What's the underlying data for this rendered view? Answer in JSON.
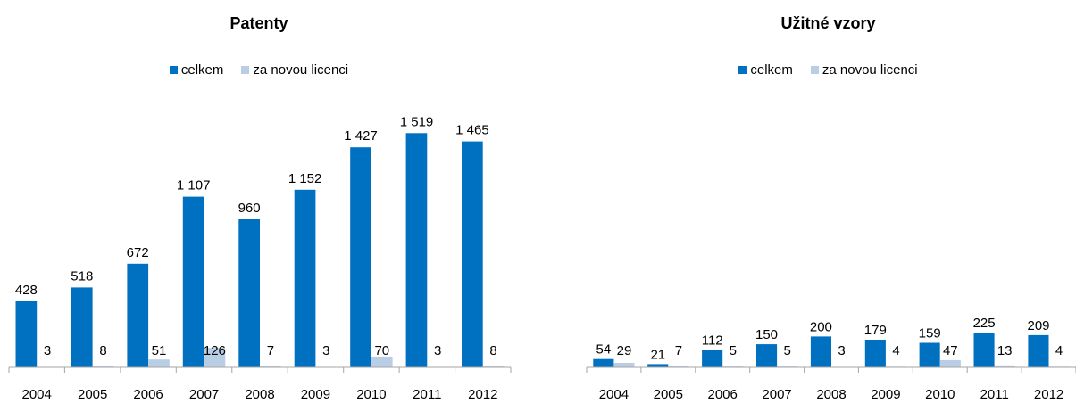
{
  "colors": {
    "total": "#0070C0",
    "new_license": "#B9CDE5",
    "axis": "#A6A6A6"
  },
  "chart_data": [
    {
      "type": "bar",
      "title": "Patenty",
      "categories": [
        "2004",
        "2005",
        "2006",
        "2007",
        "2008",
        "2009",
        "2010",
        "2011",
        "2012"
      ],
      "series": [
        {
          "name": "celkem",
          "values": [
            428,
            518,
            672,
            1107,
            960,
            1152,
            1427,
            1519,
            1465
          ],
          "labels": [
            "428",
            "518",
            "672",
            "1 107",
            "960",
            "1 152",
            "1 427",
            "1 519",
            "1 465"
          ]
        },
        {
          "name": "za novou licenci",
          "values": [
            3,
            8,
            51,
            126,
            7,
            3,
            70,
            3,
            8
          ],
          "labels": [
            "3",
            "8",
            "51",
            "126",
            "7",
            "3",
            "70",
            "3",
            "8"
          ]
        }
      ],
      "xlabel": "",
      "ylabel": "",
      "ylim": [
        0,
        1700
      ],
      "legend": "top-center",
      "grid": false
    },
    {
      "type": "bar",
      "title": "Užitné vzory",
      "categories": [
        "2004",
        "2005",
        "2006",
        "2007",
        "2008",
        "2009",
        "2010",
        "2011",
        "2012"
      ],
      "series": [
        {
          "name": "celkem",
          "values": [
            54,
            21,
            112,
            150,
            200,
            179,
            159,
            225,
            209
          ],
          "labels": [
            "54",
            "21",
            "112",
            "150",
            "200",
            "179",
            "159",
            "225",
            "209"
          ]
        },
        {
          "name": "za novou licenci",
          "values": [
            29,
            7,
            5,
            5,
            3,
            4,
            47,
            13,
            4
          ],
          "labels": [
            "29",
            "7",
            "5",
            "5",
            "3",
            "4",
            "47",
            "13",
            "4"
          ]
        }
      ],
      "xlabel": "",
      "ylabel": "",
      "ylim": [
        0,
        1700
      ],
      "legend": "top-center",
      "grid": false
    }
  ]
}
